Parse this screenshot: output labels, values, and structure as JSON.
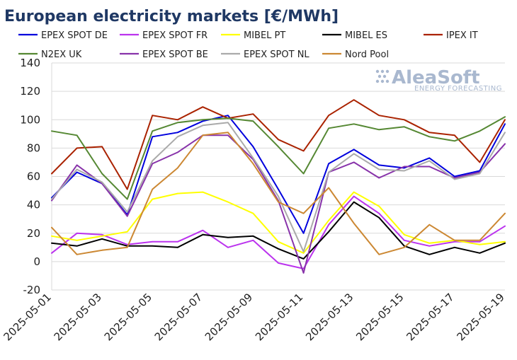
{
  "chart_data": {
    "type": "line",
    "title": "European electricity markets [€/MWh]",
    "xlabel": "",
    "ylabel": "",
    "ylim": [
      -20,
      140
    ],
    "yticks": [
      -20,
      0,
      20,
      40,
      60,
      80,
      100,
      120,
      140
    ],
    "grid": true,
    "legend_position": "top",
    "x": [
      "2025-05-01",
      "2025-05-02",
      "2025-05-03",
      "2025-05-04",
      "2025-05-05",
      "2025-05-06",
      "2025-05-07",
      "2025-05-08",
      "2025-05-09",
      "2025-05-10",
      "2025-05-11",
      "2025-05-12",
      "2025-05-13",
      "2025-05-14",
      "2025-05-15",
      "2025-05-16",
      "2025-05-17",
      "2025-05-18",
      "2025-05-19"
    ],
    "xtick_labels": [
      "2025-05-01",
      "2025-05-03",
      "2025-05-05",
      "2025-05-07",
      "2025-05-09",
      "2025-05-11",
      "2025-05-13",
      "2025-05-15",
      "2025-05-17",
      "2025-05-19"
    ],
    "series": [
      {
        "name": "EPEX SPOT DE",
        "color": "#0000dd",
        "values": [
          45,
          63,
          55,
          33,
          88,
          91,
          99,
          103,
          81,
          51,
          20,
          69,
          79,
          68,
          66,
          73,
          60,
          64,
          97
        ]
      },
      {
        "name": "EPEX SPOT FR",
        "color": "#bb33ee",
        "values": [
          6,
          20,
          19,
          12,
          14,
          14,
          22,
          10,
          15,
          -1,
          -5,
          26,
          46,
          34,
          15,
          11,
          14,
          14,
          25
        ]
      },
      {
        "name": "MIBEL PT",
        "color": "#ffff00",
        "values": [
          18,
          15,
          18,
          21,
          44,
          48,
          49,
          42,
          34,
          14,
          6,
          29,
          49,
          39,
          19,
          13,
          15,
          12,
          14
        ]
      },
      {
        "name": "MIBEL ES",
        "color": "#000000",
        "values": [
          13,
          11,
          16,
          11,
          11,
          10,
          19,
          17,
          18,
          9,
          2,
          21,
          42,
          31,
          11,
          5,
          10,
          6,
          13
        ]
      },
      {
        "name": "IPEX IT",
        "color": "#aa2200",
        "values": [
          62,
          80,
          81,
          51,
          103,
          100,
          109,
          101,
          104,
          86,
          78,
          103,
          114,
          103,
          100,
          91,
          89,
          70,
          100
        ]
      },
      {
        "name": "N2EX UK",
        "color": "#558833",
        "values": [
          92,
          89,
          62,
          44,
          92,
          98,
          100,
          101,
          99,
          81,
          62,
          94,
          97,
          93,
          95,
          88,
          85,
          92,
          102
        ]
      },
      {
        "name": "EPEX SPOT BE",
        "color": "#8833aa",
        "values": [
          43,
          68,
          55,
          32,
          69,
          77,
          89,
          89,
          72,
          43,
          -8,
          63,
          70,
          59,
          67,
          67,
          59,
          63,
          83
        ]
      },
      {
        "name": "EPEX SPOT NL",
        "color": "#aaaaaa",
        "values": [
          44,
          65,
          56,
          35,
          71,
          88,
          96,
          98,
          73,
          46,
          7,
          63,
          76,
          65,
          64,
          71,
          58,
          62,
          91
        ]
      },
      {
        "name": "Nord Pool",
        "color": "#cc8833",
        "values": [
          24,
          5,
          8,
          10,
          51,
          66,
          89,
          91,
          69,
          42,
          34,
          52,
          27,
          5,
          10,
          26,
          15,
          15,
          34
        ]
      }
    ]
  },
  "branding": {
    "name": "AleaSoft",
    "tagline": "ENERGY FORECASTING"
  }
}
